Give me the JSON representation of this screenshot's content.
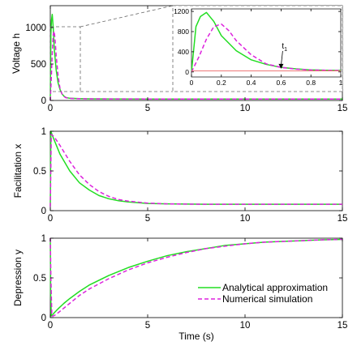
{
  "colors": {
    "analytical": "#22dd22",
    "numerical": "#dd22dd",
    "marker_line": "#ee7777",
    "axis": "#000000",
    "guide": "#666666"
  },
  "legend": {
    "placement": "bottom-right of panel 3",
    "analytical_label": "Analytical approximation",
    "numerical_label": "Numerical simulation"
  },
  "annotation": {
    "t1_label": "t",
    "t1_sub": "1",
    "t1_x": 0.6
  },
  "chart_data": [
    {
      "type": "line",
      "ylabel": "Voltage h",
      "xlim": [
        0,
        15
      ],
      "ylim": [
        0,
        1300
      ],
      "xticks": [
        "0",
        "5",
        "10",
        "15"
      ],
      "yticks": [
        "0",
        "500",
        "1000"
      ],
      "series": [
        {
          "name": "Analytical approximation",
          "style": "solid",
          "x": [
            0,
            0.03,
            0.06,
            0.1,
            0.15,
            0.2,
            0.3,
            0.4,
            0.5,
            0.6,
            0.7,
            0.8,
            1.0,
            1.5,
            2,
            5,
            10,
            15
          ],
          "y": [
            0,
            900,
            1100,
            1180,
            1000,
            720,
            420,
            240,
            150,
            90,
            60,
            40,
            30,
            25,
            22,
            20,
            20,
            20
          ]
        },
        {
          "name": "Numerical simulation",
          "style": "dashed",
          "x": [
            0,
            0.05,
            0.1,
            0.15,
            0.2,
            0.25,
            0.3,
            0.4,
            0.5,
            0.6,
            0.7,
            0.8,
            1.0,
            1.5,
            2,
            5,
            10,
            15
          ],
          "y": [
            0,
            300,
            650,
            900,
            950,
            820,
            620,
            340,
            160,
            90,
            55,
            38,
            28,
            24,
            22,
            20,
            20,
            20
          ]
        }
      ]
    },
    {
      "type": "line",
      "role": "inset",
      "xlim": [
        0,
        1
      ],
      "ylim": [
        -100,
        1250
      ],
      "xticks": [
        "0",
        "0.2",
        "0.4",
        "0.6",
        "0.8",
        "1"
      ],
      "yticks": [
        "0",
        "400",
        "800",
        "1200"
      ],
      "series": [
        {
          "name": "Analytical approximation",
          "style": "solid",
          "x": [
            0,
            0.03,
            0.06,
            0.1,
            0.15,
            0.2,
            0.3,
            0.4,
            0.5,
            0.6,
            0.7,
            0.8,
            0.9,
            1.0
          ],
          "y": [
            0,
            900,
            1100,
            1180,
            1000,
            720,
            420,
            240,
            150,
            90,
            60,
            40,
            33,
            30
          ]
        },
        {
          "name": "Numerical simulation",
          "style": "dashed",
          "x": [
            0,
            0.05,
            0.1,
            0.15,
            0.2,
            0.25,
            0.3,
            0.4,
            0.5,
            0.6,
            0.7,
            0.8,
            0.9,
            1.0
          ],
          "y": [
            0,
            300,
            650,
            900,
            950,
            820,
            620,
            340,
            160,
            90,
            55,
            38,
            32,
            28
          ]
        },
        {
          "name": "",
          "style": "threshold",
          "x": [
            0,
            1
          ],
          "y": [
            20,
            20
          ]
        }
      ]
    },
    {
      "type": "line",
      "ylabel": "Facilitation x",
      "xlim": [
        0,
        15
      ],
      "ylim": [
        0,
        1
      ],
      "xticks": [
        "0",
        "5",
        "10",
        "15"
      ],
      "yticks": [
        "0",
        "0.5",
        "1"
      ],
      "series": [
        {
          "name": "Analytical approximation",
          "style": "solid",
          "x": [
            0,
            0.03,
            0.1,
            0.3,
            0.5,
            1,
            1.5,
            2,
            2.5,
            3,
            3.5,
            4,
            5,
            6,
            8,
            10,
            15
          ],
          "y": [
            0.05,
            1.0,
            0.95,
            0.83,
            0.71,
            0.5,
            0.35,
            0.26,
            0.19,
            0.15,
            0.125,
            0.11,
            0.09,
            0.085,
            0.08,
            0.08,
            0.08
          ]
        },
        {
          "name": "Numerical simulation",
          "style": "dashed",
          "x": [
            0,
            0.05,
            0.2,
            0.5,
            1,
            1.5,
            2,
            2.5,
            3,
            3.5,
            4,
            5,
            6,
            8,
            10,
            15
          ],
          "y": [
            0.05,
            0.96,
            0.93,
            0.82,
            0.62,
            0.45,
            0.33,
            0.24,
            0.18,
            0.14,
            0.12,
            0.095,
            0.085,
            0.08,
            0.08,
            0.08
          ]
        }
      ]
    },
    {
      "type": "line",
      "ylabel": "Depression y",
      "xlabel": "Time (s)",
      "xlim": [
        0,
        15
      ],
      "ylim": [
        0,
        1
      ],
      "xticks": [
        "0",
        "5",
        "10",
        "15"
      ],
      "yticks": [
        "0",
        "0.5",
        "1"
      ],
      "series": [
        {
          "name": "Analytical approximation",
          "style": "solid",
          "x": [
            0,
            0.02,
            0.05,
            0.1,
            0.2,
            0.4,
            0.7,
            1,
            1.5,
            2,
            3,
            4,
            5,
            6,
            7,
            8,
            9,
            10,
            11,
            12,
            13,
            14,
            15
          ],
          "y": [
            1,
            0.3,
            0.02,
            0.03,
            0.06,
            0.11,
            0.18,
            0.24,
            0.33,
            0.41,
            0.53,
            0.63,
            0.71,
            0.78,
            0.83,
            0.87,
            0.91,
            0.93,
            0.95,
            0.96,
            0.97,
            0.98,
            0.985
          ]
        },
        {
          "name": "Numerical simulation",
          "style": "dashed",
          "x": [
            0,
            0.03,
            0.08,
            0.15,
            0.3,
            0.5,
            0.8,
            1,
            1.5,
            2,
            3,
            4,
            5,
            6,
            7,
            8,
            9,
            10,
            11,
            12,
            13,
            14,
            15
          ],
          "y": [
            1,
            0.5,
            0.02,
            0.02,
            0.04,
            0.08,
            0.14,
            0.18,
            0.28,
            0.36,
            0.49,
            0.6,
            0.69,
            0.76,
            0.82,
            0.87,
            0.9,
            0.93,
            0.95,
            0.96,
            0.97,
            0.98,
            0.985
          ]
        }
      ]
    }
  ]
}
